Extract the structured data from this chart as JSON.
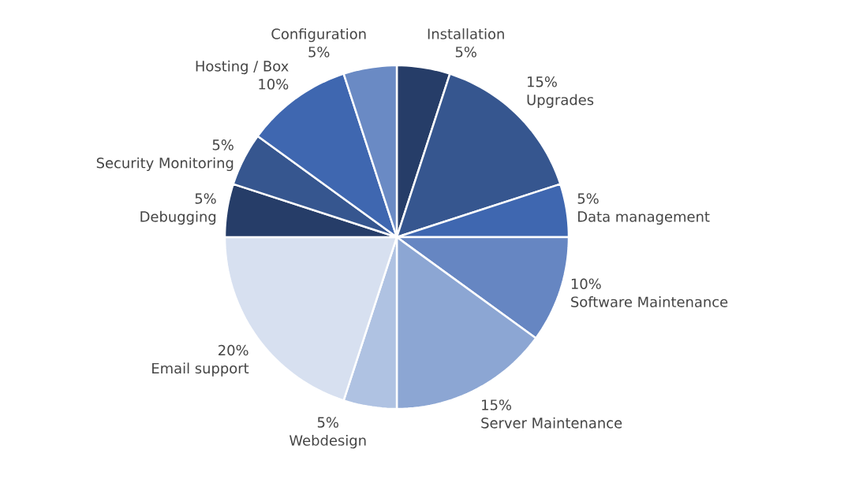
{
  "chart_data": {
    "type": "pie",
    "categories": [
      "Installation",
      "Upgrades",
      "Data management",
      "Software Maintenance",
      "Server Maintenance",
      "Webdesign",
      "Email support",
      "Debugging",
      "Security Monitoring",
      "Hosting / Box",
      "Configuration"
    ],
    "values": [
      5,
      15,
      5,
      10,
      15,
      5,
      20,
      5,
      5,
      10,
      5
    ],
    "value_labels": [
      "5%",
      "15%",
      "5%",
      "10%",
      "15%",
      "5%",
      "20%",
      "5%",
      "5%",
      "10%",
      "5%"
    ],
    "colors": [
      "#263d68",
      "#36568f",
      "#3f67b0",
      "#6686c2",
      "#8ca6d3",
      "#afc2e2",
      "#d7e0f0",
      "#263d68",
      "#36568f",
      "#3f67b0",
      "#6a8ac4"
    ]
  }
}
